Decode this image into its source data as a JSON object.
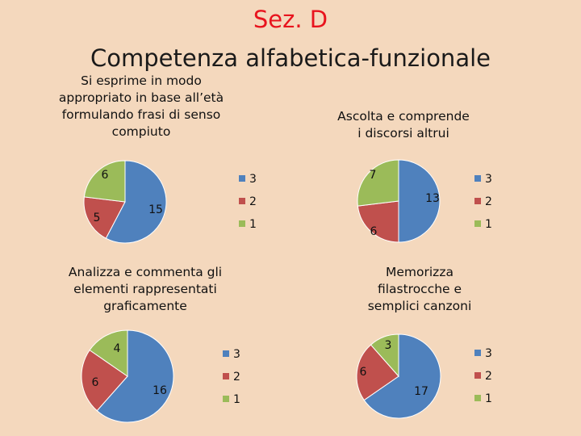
{
  "slide": {
    "title_line1": "Sez. D",
    "title_line2": "Competenza alfabetica-funzionale"
  },
  "colors": {
    "3": "#4f81bd",
    "2": "#c0504d",
    "1": "#9bbb59"
  },
  "chart_data": [
    {
      "type": "pie",
      "title": "Si esprime in modo\nappropriato in base all’età\nformulando frasi di senso\ncompiuto",
      "categories": [
        "3",
        "2",
        "1"
      ],
      "values": [
        15,
        5,
        6
      ],
      "legend": "right"
    },
    {
      "type": "pie",
      "title": "Ascolta e comprende\ni discorsi altrui",
      "categories": [
        "3",
        "2",
        "1"
      ],
      "values": [
        13,
        6,
        7
      ],
      "legend": "right"
    },
    {
      "type": "pie",
      "title": "Analizza e commenta gli\nelementi rappresentati\ngraficamente",
      "categories": [
        "3",
        "2",
        "1"
      ],
      "values": [
        16,
        6,
        4
      ],
      "legend": "right"
    },
    {
      "type": "pie",
      "title": "Memorizza\nfilastrocche e\nsemplici canzoni",
      "categories": [
        "3",
        "2",
        "1"
      ],
      "values": [
        17,
        6,
        3
      ],
      "legend": "right"
    }
  ]
}
